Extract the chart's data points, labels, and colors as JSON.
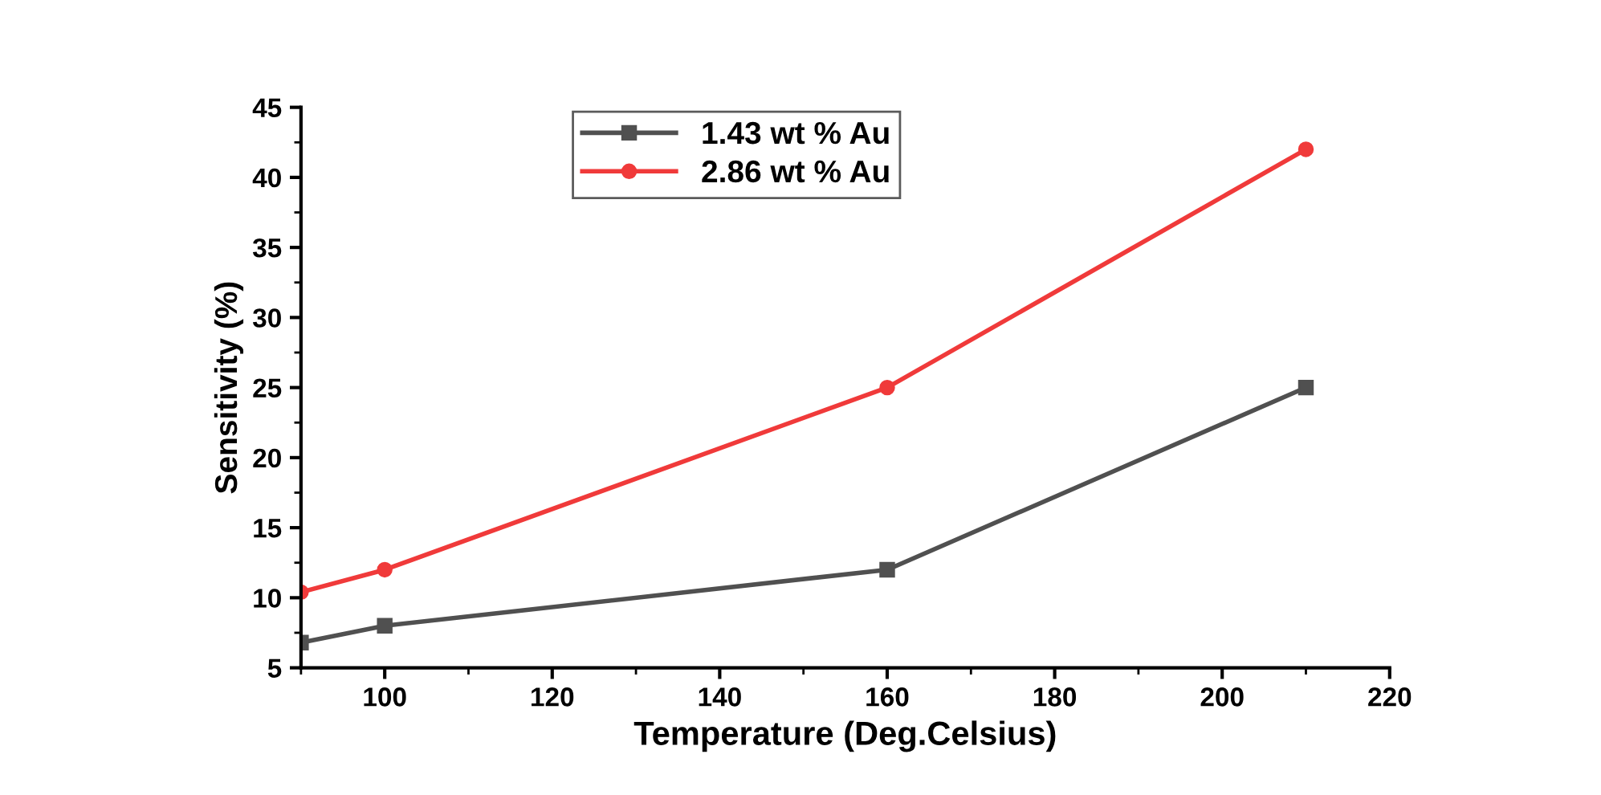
{
  "chart_data": {
    "type": "line",
    "xlabel": "Temperature (Deg.Celsius)",
    "ylabel": "Sensitivity (%)",
    "xlim": [
      90,
      220
    ],
    "xticks": [
      100,
      120,
      140,
      160,
      180,
      200,
      220
    ],
    "ylim": [
      5,
      45
    ],
    "yticks": [
      5,
      10,
      15,
      20,
      25,
      30,
      35,
      40,
      45
    ],
    "legend": "top",
    "grid": false,
    "series": [
      {
        "name": "1.43 wt % Au",
        "color": "#505050",
        "marker": "square",
        "x": [
          90,
          100,
          160,
          210
        ],
        "values": [
          6.8,
          8,
          12,
          25
        ]
      },
      {
        "name": "2.86 wt % Au",
        "color": "#f03a3a",
        "marker": "circle",
        "x": [
          90,
          100,
          160,
          210
        ],
        "values": [
          10.4,
          12,
          25,
          42
        ]
      }
    ]
  }
}
